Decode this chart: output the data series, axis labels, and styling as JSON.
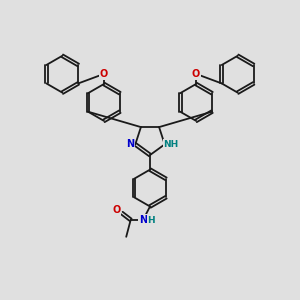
{
  "bg_color": "#e0e0e0",
  "bond_color": "#1a1a1a",
  "bond_width": 1.3,
  "N_color": "#0000cc",
  "O_color": "#cc0000",
  "NH_color": "#008080",
  "figsize": [
    3.0,
    3.0
  ],
  "dpi": 100,
  "xlim": [
    0,
    10
  ],
  "ylim": [
    0,
    10
  ]
}
